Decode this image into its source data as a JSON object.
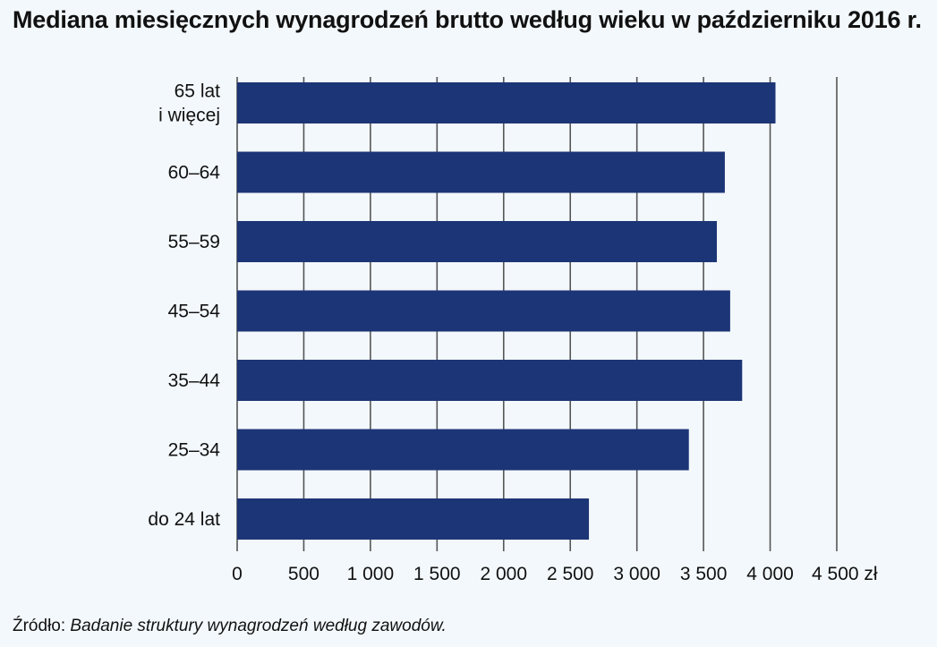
{
  "title": "Mediana miesięcznych wynagrodzeń brutto według wieku w październiku 2016 r.",
  "source": {
    "prefix": "Źródło:",
    "title": "Badanie struktury wynagrodzeń według zawodów."
  },
  "colors": {
    "bar": "#1c3576",
    "grid": "#555555",
    "background": "#f3f8fc"
  },
  "chart_data": {
    "type": "bar",
    "orientation": "horizontal",
    "categories": [
      [
        "65 lat",
        "i więcej"
      ],
      [
        "60–64"
      ],
      [
        "55–59"
      ],
      [
        "45–54"
      ],
      [
        "35–44"
      ],
      [
        "25–34"
      ],
      [
        "do 24 lat"
      ]
    ],
    "values": [
      4040,
      3660,
      3600,
      3700,
      3790,
      3390,
      2640
    ],
    "xlim": [
      0,
      4500
    ],
    "x_ticks": [
      0,
      500,
      1000,
      1500,
      2000,
      2500,
      3000,
      3500,
      4000,
      4500
    ],
    "x_tick_labels": [
      "0",
      "500",
      "1 000",
      "1 500",
      "2 000",
      "2 500",
      "3 000",
      "3 500",
      "4 000",
      "4 500 zł"
    ],
    "grid": "vertical"
  }
}
